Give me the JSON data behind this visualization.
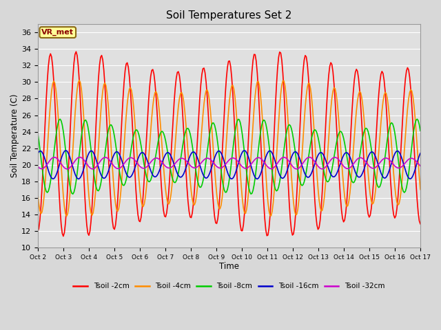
{
  "title": "Soil Temperatures Set 2",
  "xlabel": "Time",
  "ylabel": "Soil Temperature (C)",
  "ylim": [
    10,
    37
  ],
  "yticks": [
    10,
    12,
    14,
    16,
    18,
    20,
    22,
    24,
    26,
    28,
    30,
    32,
    34,
    36
  ],
  "xtick_labels": [
    "Oct 2",
    "Oct 3",
    "Oct 4",
    "Oct 5",
    "Oct 6",
    "Oct 7",
    "Oct 8",
    "Oct 9",
    "Oct 10",
    "Oct 11",
    "Oct 12",
    "Oct 13",
    "Oct 14",
    "Oct 15",
    "Oct 16",
    "Oct 17"
  ],
  "annotation_text": "VR_met",
  "series_params": {
    "Tsoil -2cm": {
      "color": "#FF0000",
      "lw": 1.2,
      "mean": 22.5,
      "amp": 10.0,
      "phase": 0.25,
      "amp_var": 0.12,
      "amp_var_period": 8.0
    },
    "Tsoil -4cm": {
      "color": "#FF8C00",
      "lw": 1.2,
      "mean": 22.0,
      "amp": 7.5,
      "phase": 0.38,
      "amp_var": 0.1,
      "amp_var_period": 8.0
    },
    "Tsoil -8cm": {
      "color": "#00CC00",
      "lw": 1.2,
      "mean": 21.0,
      "amp": 3.8,
      "phase": 0.62,
      "amp_var": 0.2,
      "amp_var_period": 7.0
    },
    "Tsoil -16cm": {
      "color": "#0000CC",
      "lw": 1.2,
      "mean": 20.0,
      "amp": 1.6,
      "phase": 0.85,
      "amp_var": 0.08,
      "amp_var_period": 7.0
    },
    "Tsoil -32cm": {
      "color": "#CC00CC",
      "lw": 1.2,
      "mean": 20.2,
      "amp": 0.65,
      "phase": 1.4,
      "amp_var": 0.1,
      "amp_var_period": 9.0
    }
  },
  "fig_bg_color": "#D8D8D8",
  "plot_bg_color": "#E0E0E0",
  "grid_color": "#FFFFFF",
  "legend_labels": [
    "Tsoil -2cm",
    "Tsoil -4cm",
    "Tsoil -8cm",
    "Tsoil -16cm",
    "Tsoil -32cm"
  ],
  "legend_colors": [
    "#FF0000",
    "#FF8C00",
    "#00CC00",
    "#0000CC",
    "#CC00CC"
  ]
}
